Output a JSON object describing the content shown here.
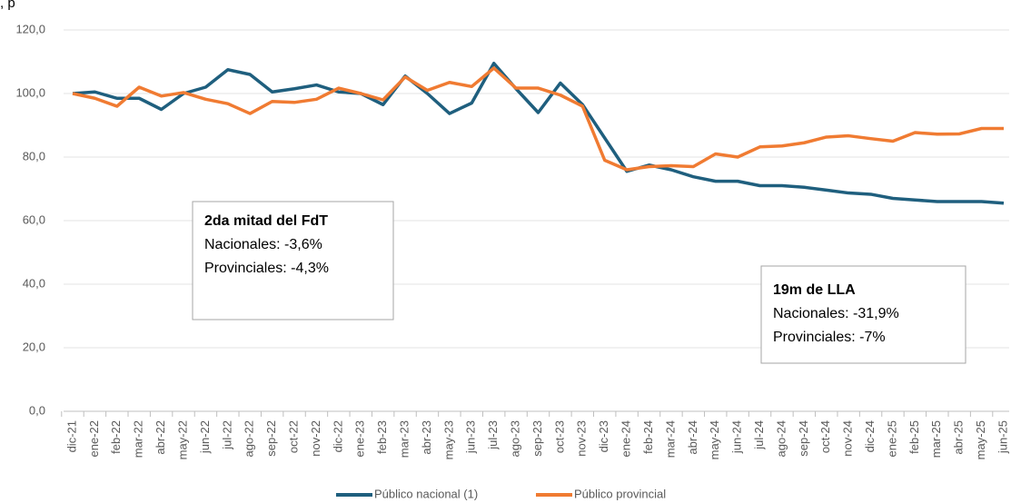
{
  "chart_data": {
    "type": "line",
    "title": ", p",
    "categories": [
      "dic-21",
      "ene-22",
      "feb-22",
      "mar-22",
      "abr-22",
      "may-22",
      "jun-22",
      "jul-22",
      "ago-22",
      "sep-22",
      "oct-22",
      "nov-22",
      "dic-22",
      "ene-23",
      "feb-23",
      "mar-23",
      "abr-23",
      "may-23",
      "jun-23",
      "jul-23",
      "ago-23",
      "sep-23",
      "oct-23",
      "nov-23",
      "dic-23",
      "ene-24",
      "feb-24",
      "mar-24",
      "abr-24",
      "may-24",
      "jun-24",
      "jul-24",
      "ago-24",
      "sep-24",
      "oct-24",
      "nov-24",
      "dic-24",
      "ene-25",
      "feb-25",
      "mar-25",
      "abr-25",
      "may-25",
      "jun-25"
    ],
    "series": [
      {
        "name": "Público nacional (1)",
        "color": "#1f5f7e",
        "values": [
          100,
          100.5,
          98.5,
          98.5,
          95,
          100,
          102,
          107.5,
          106,
          100.5,
          101.5,
          102.7,
          100.5,
          100,
          96.5,
          105.5,
          100,
          93.7,
          97,
          109.5,
          101.5,
          94,
          103.3,
          96.5,
          86,
          75.5,
          77.5,
          76,
          73.8,
          72.4,
          72.4,
          71,
          71,
          70.5,
          69.6,
          68.7,
          68.3,
          67,
          66.5,
          66,
          66,
          66,
          65.5
        ]
      },
      {
        "name": "Público provincial",
        "color": "#f07b32",
        "values": [
          100,
          98.5,
          96,
          102,
          99.2,
          100.3,
          98.2,
          96.8,
          93.7,
          97.5,
          97.2,
          98.2,
          101.7,
          100,
          98,
          105.2,
          101,
          103.5,
          102.2,
          108,
          101.7,
          101.7,
          99.5,
          96,
          79,
          76,
          77,
          77.3,
          77,
          81,
          80,
          83.2,
          83.5,
          84.5,
          86.3,
          86.7,
          85.8,
          85,
          87.7,
          87.2,
          87.3,
          89,
          89
        ]
      }
    ],
    "ylim": [
      0,
      120
    ],
    "yticks": [
      {
        "value": 0,
        "label": "0,0"
      },
      {
        "value": 20,
        "label": "20,0"
      },
      {
        "value": 40,
        "label": "40,0"
      },
      {
        "value": 60,
        "label": "60,0"
      },
      {
        "value": 80,
        "label": "80,0"
      },
      {
        "value": 100,
        "label": "100,0"
      },
      {
        "value": 120,
        "label": "120,0"
      }
    ],
    "grid": true,
    "legend": "bottom",
    "annotations": [
      {
        "title": "2da mitad del FdT",
        "lines": [
          "Nacionales: -3,6%",
          "Provinciales: -4,3%"
        ]
      },
      {
        "title": "19m de LLA",
        "lines": [
          "Nacionales: -31,9%",
          "Provinciales: -7%"
        ]
      }
    ]
  }
}
